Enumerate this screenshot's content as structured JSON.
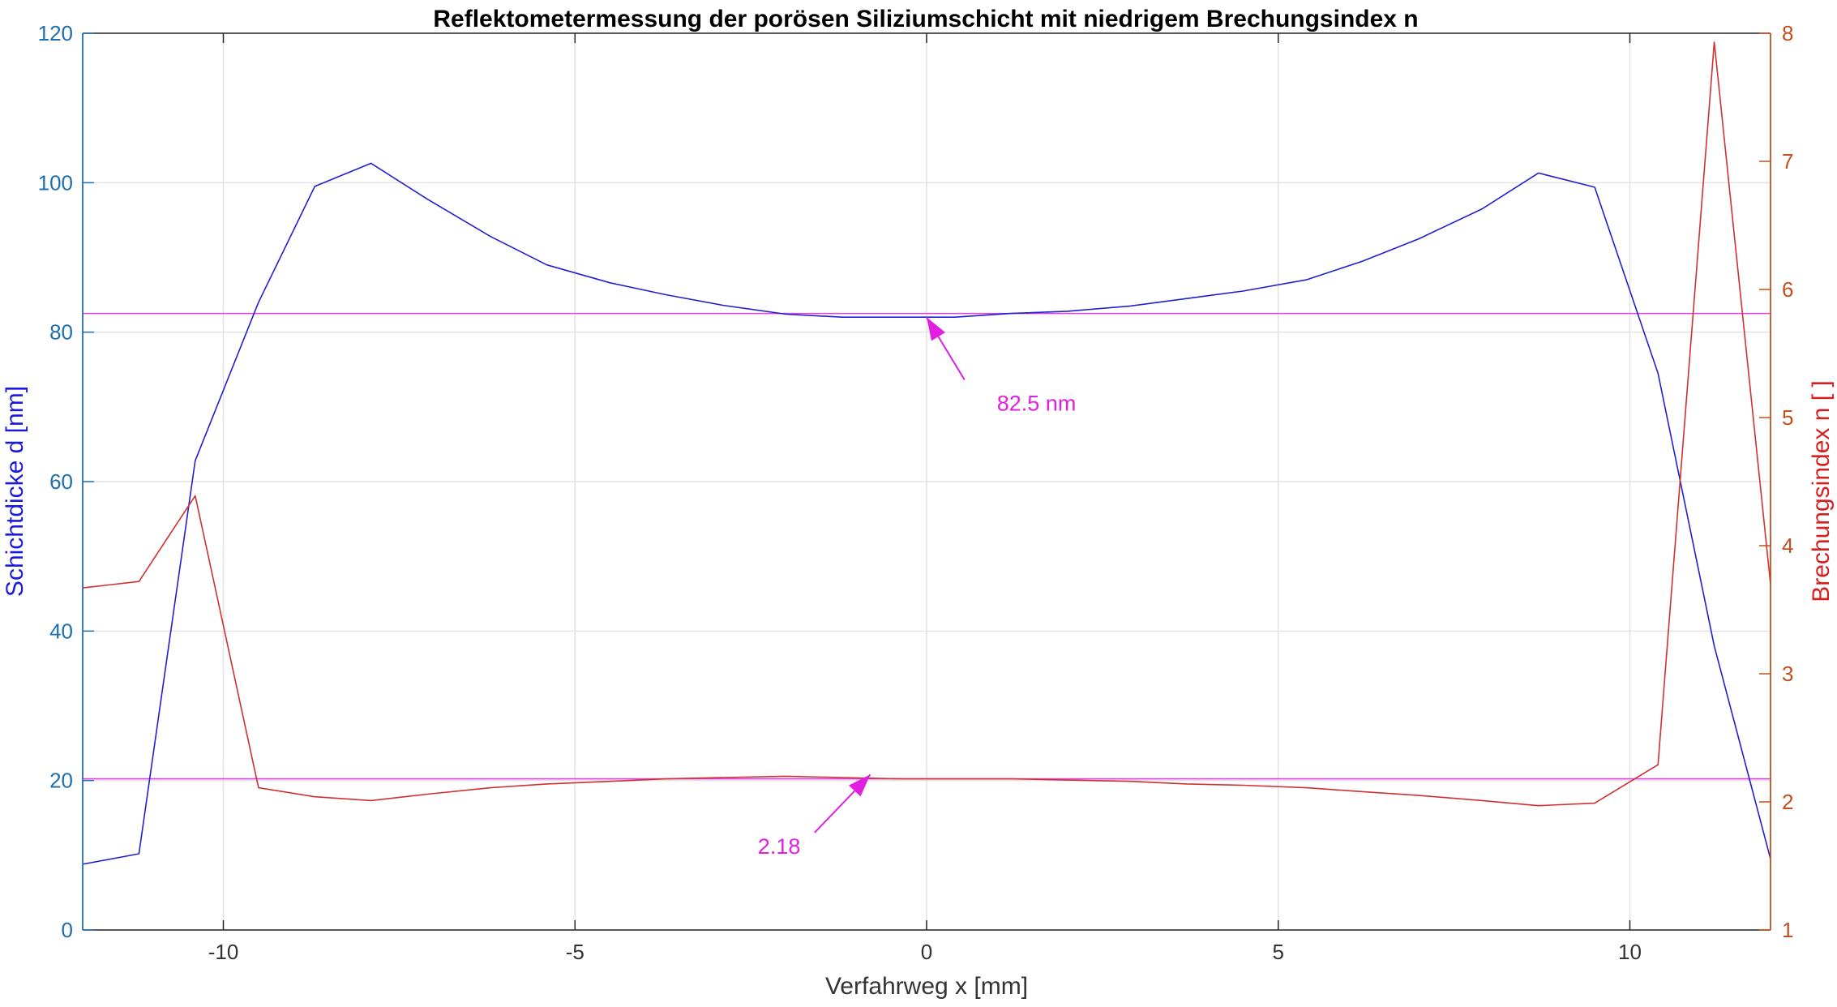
{
  "chart_data": {
    "type": "line",
    "title": "Reflektometermessung der porösen Siliziumschicht mit niedrigem Brechungsindex n",
    "xlabel": "Verfahrweg x [mm]",
    "ylabel_left": "Schichtdicke d [nm]",
    "ylabel_right": "Brechungsindex n [ ]",
    "xlim": [
      -12,
      12
    ],
    "ylim_left": [
      0,
      120
    ],
    "ylim_right": [
      1,
      8
    ],
    "xticks": [
      -10,
      -5,
      0,
      5,
      10
    ],
    "yticks_left": [
      0,
      20,
      40,
      60,
      80,
      100,
      120
    ],
    "yticks_right": [
      1,
      2,
      3,
      4,
      5,
      6,
      7,
      8
    ],
    "grid": true,
    "series": [
      {
        "axis": "left",
        "color": "#2020d0",
        "x": [
          -12,
          -11.2,
          -10.4,
          -9.5,
          -8.7,
          -7.9,
          -7.1,
          -6.2,
          -5.4,
          -4.5,
          -3.7,
          -2.9,
          -2.0,
          -1.2,
          -0.4,
          0.4,
          1.2,
          2.0,
          2.9,
          3.7,
          4.5,
          5.4,
          6.2,
          7.0,
          7.9,
          8.7,
          9.5,
          10.4,
          11.2,
          12
        ],
        "y": [
          8.8,
          10.2,
          62.8,
          84.0,
          99.5,
          102.6,
          97.8,
          92.8,
          89.0,
          86.6,
          85.0,
          83.6,
          82.4,
          82.0,
          82.0,
          82.0,
          82.5,
          82.8,
          83.5,
          84.5,
          85.5,
          87.0,
          89.5,
          92.5,
          96.5,
          101.3,
          99.4,
          74.5,
          38.0,
          9.5
        ]
      },
      {
        "axis": "right",
        "color": "#d03030",
        "x": [
          -12,
          -11.2,
          -10.4,
          -9.5,
          -8.7,
          -7.9,
          -7.1,
          -6.2,
          -5.4,
          -4.5,
          -3.7,
          -2.9,
          -2.0,
          -1.2,
          -0.4,
          0.4,
          1.2,
          2.0,
          2.9,
          3.7,
          4.5,
          5.4,
          6.2,
          7.0,
          7.9,
          8.7,
          9.5,
          10.4,
          11.2,
          12
        ],
        "y": [
          3.67,
          3.72,
          4.39,
          2.11,
          2.04,
          2.01,
          2.06,
          2.11,
          2.14,
          2.16,
          2.18,
          2.19,
          2.2,
          2.19,
          2.18,
          2.18,
          2.18,
          2.17,
          2.16,
          2.14,
          2.13,
          2.11,
          2.08,
          2.05,
          2.01,
          1.97,
          1.99,
          2.29,
          7.93,
          3.7
        ]
      }
    ],
    "reference_lines": [
      {
        "axis": "left",
        "value": 82.5,
        "color": "#e040e0"
      },
      {
        "axis": "right",
        "value": 2.18,
        "color": "#e040e0"
      }
    ],
    "annotations": [
      {
        "text": "82.5 nm",
        "text_at": [
          1.0,
          69.5
        ],
        "arrow_to": [
          0,
          82
        ],
        "axis": "left"
      },
      {
        "text": "2.18",
        "text_at": [
          -2.4,
          10.2
        ],
        "arrow_to": [
          -0.8,
          20.8
        ],
        "axis": "left"
      }
    ],
    "colors": {
      "left_axis": "#1f6fb0",
      "right_axis": "#c0501f",
      "annotation": "#e020e0",
      "grid": "#e2e2e2"
    }
  }
}
